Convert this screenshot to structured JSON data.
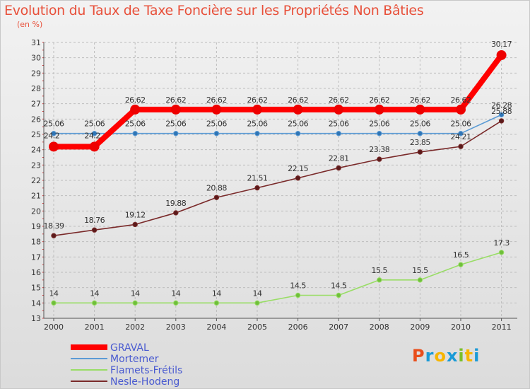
{
  "chart_data": {
    "type": "line",
    "title": "Evolution du Taux de Taxe Foncière sur les Propriétés Non Bâties",
    "subtitle": "(en %)",
    "xlabel": "",
    "ylabel": "",
    "categories": [
      "2000",
      "2001",
      "2002",
      "2003",
      "2004",
      "2005",
      "2006",
      "2007",
      "2008",
      "2009",
      "2010",
      "2011"
    ],
    "ylim": [
      13,
      31
    ],
    "yticks": [
      13,
      14,
      15,
      16,
      17,
      18,
      19,
      20,
      21,
      22,
      23,
      24,
      25,
      26,
      27,
      28,
      29,
      30,
      31
    ],
    "grid": true,
    "legend_position": "bottom-left",
    "series": [
      {
        "name": "GRAVAL",
        "color": "#ff0000",
        "values": [
          24.2,
          24.2,
          26.62,
          26.62,
          26.62,
          26.62,
          26.62,
          26.62,
          26.62,
          26.62,
          26.62,
          30.17
        ],
        "labels": [
          "24.2",
          "24.2",
          "26.62",
          "26.62",
          "26.62",
          "26.62",
          "26.62",
          "26.62",
          "26.62",
          "26.62",
          "26.62",
          "30.17"
        ]
      },
      {
        "name": "Mortemer",
        "color": "#5b9bd5",
        "values": [
          25.06,
          25.06,
          25.06,
          25.06,
          25.06,
          25.06,
          25.06,
          25.06,
          25.06,
          25.06,
          25.06,
          26.28
        ],
        "labels": [
          "25.06",
          "25.06",
          "25.06",
          "25.06",
          "25.06",
          "25.06",
          "25.06",
          "25.06",
          "25.06",
          "25.06",
          "25.06",
          "26.28"
        ]
      },
      {
        "name": "Flamets-Frétils",
        "color": "#99dd66",
        "values": [
          14,
          14,
          14,
          14,
          14,
          14,
          14.5,
          14.5,
          15.5,
          15.5,
          16.5,
          17.3
        ],
        "labels": [
          "14",
          "14",
          "14",
          "14",
          "14",
          "14",
          "14.5",
          "14.5",
          "15.5",
          "15.5",
          "16.5",
          "17.3"
        ]
      },
      {
        "name": "Nesle-Hodeng",
        "color": "#7a2a2a",
        "values": [
          18.39,
          18.76,
          19.12,
          19.88,
          20.88,
          21.51,
          22.15,
          22.81,
          23.38,
          23.85,
          24.21,
          25.88
        ],
        "labels": [
          "18.39",
          "18.76",
          "19.12",
          "19.88",
          "20.88",
          "21.51",
          "22.15",
          "22.81",
          "23.38",
          "23.85",
          "24.21",
          "25.88"
        ]
      }
    ],
    "brand": [
      "P",
      "r",
      "o",
      "x",
      "i",
      "t",
      "i"
    ],
    "brand_colors": [
      "#e94e1b",
      "#1a9ad6",
      "#f7b500",
      "#1a9ad6",
      "#7bbf2a",
      "#f7b500",
      "#1a9ad6"
    ]
  }
}
